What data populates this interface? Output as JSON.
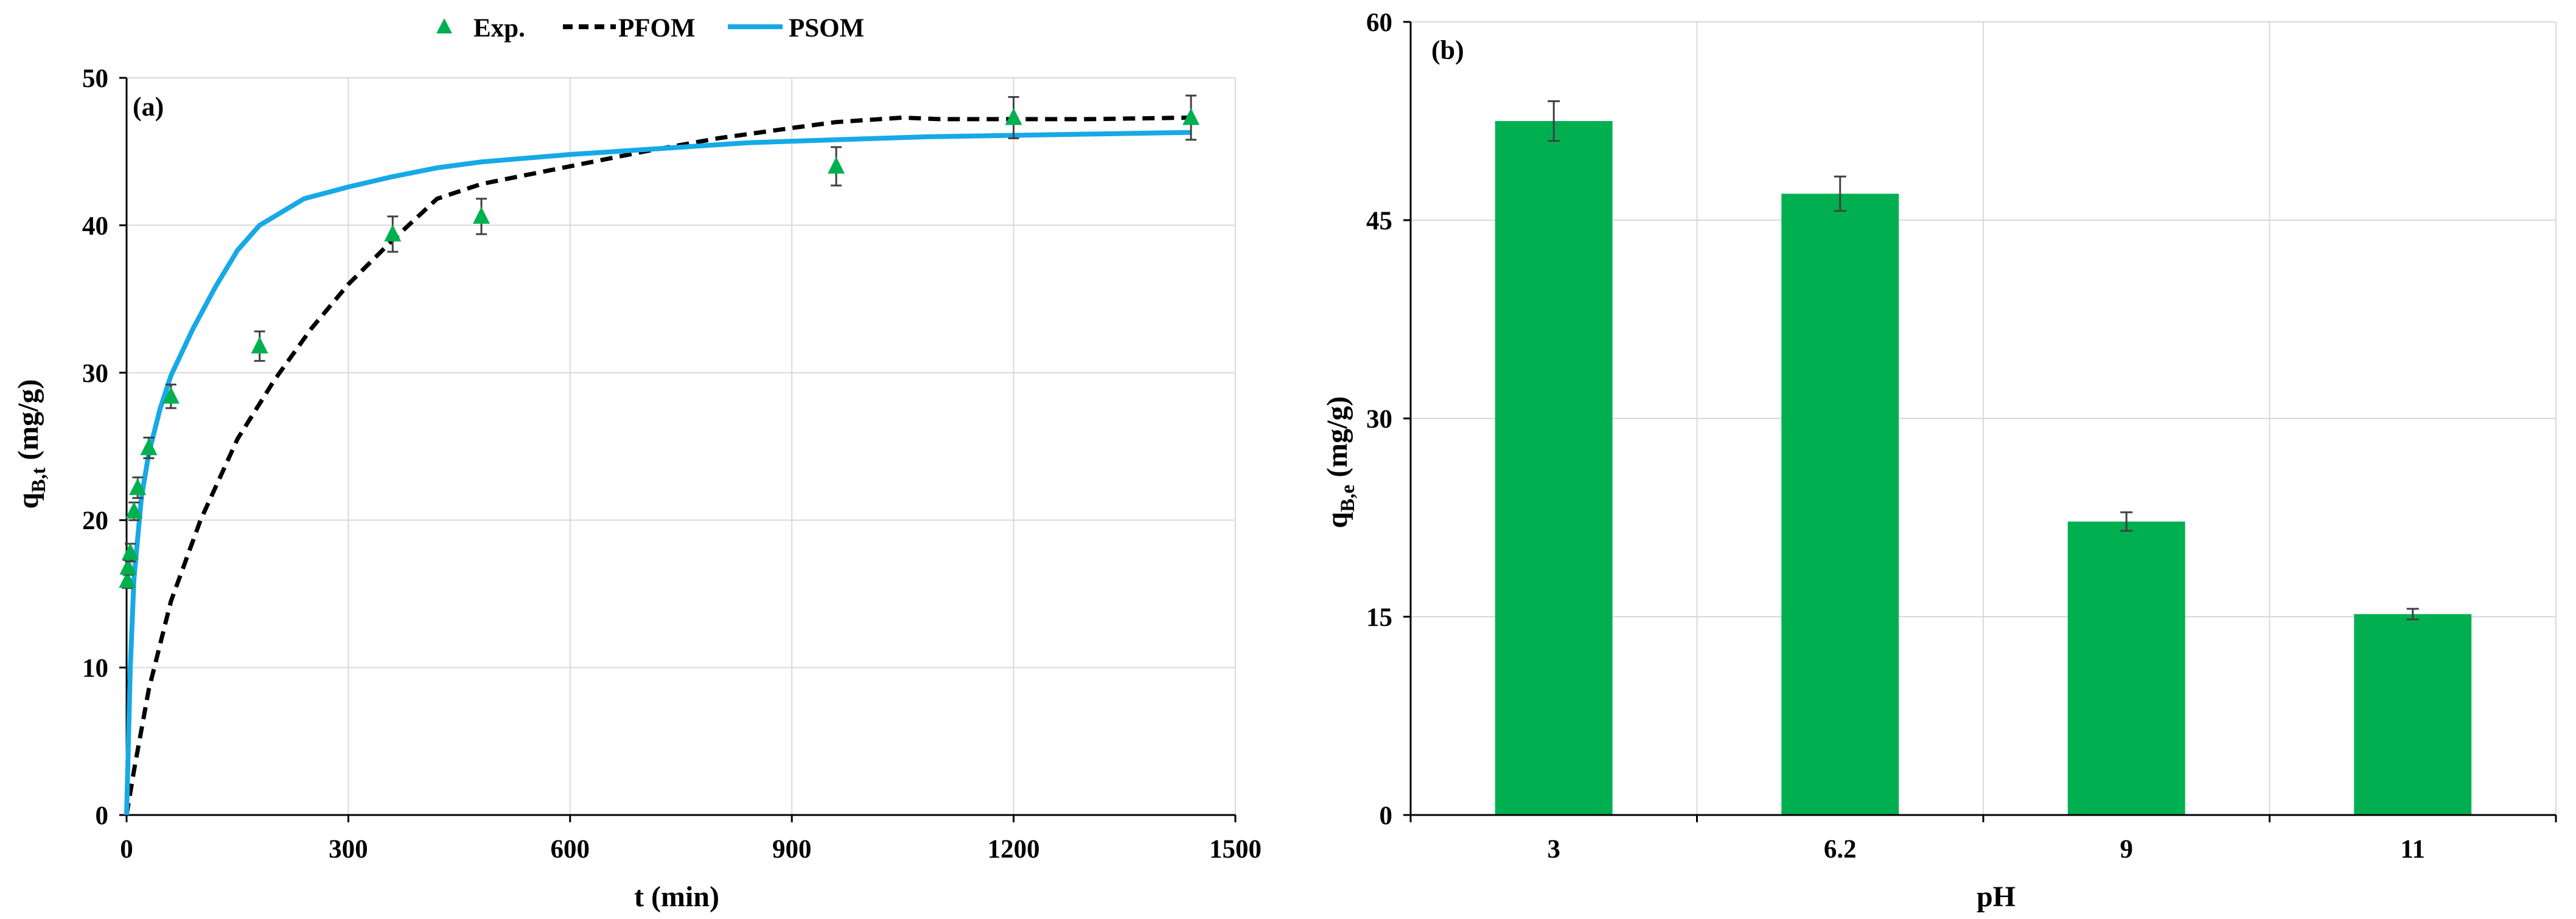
{
  "chart_data": [
    {
      "panel_label": "(a)",
      "type": "scatter",
      "xlabel": "t (min)",
      "ylabel": {
        "main": "q",
        "sub": "B,t",
        "unit": " (mg/g)"
      },
      "xlim": [
        0,
        1500
      ],
      "ylim": [
        0,
        50
      ],
      "xticks": [
        0,
        300,
        600,
        900,
        1200,
        1500
      ],
      "yticks": [
        0,
        10,
        20,
        30,
        40,
        50
      ],
      "grid": true,
      "legend": {
        "placement": "top-center, above plot",
        "entries": [
          "Exp.",
          "PFOM",
          "PSOM"
        ]
      },
      "series": [
        {
          "name": "Exp.",
          "kind": "markers",
          "marker": "triangle",
          "color": "#00b050",
          "points": [
            {
              "x": 1,
              "y": 15.9,
              "err": 0.5
            },
            {
              "x": 2,
              "y": 16.8,
              "err": 0.5
            },
            {
              "x": 5,
              "y": 17.8,
              "err": 0.6
            },
            {
              "x": 10,
              "y": 20.6,
              "err": 0.6
            },
            {
              "x": 15,
              "y": 22.2,
              "err": 0.7
            },
            {
              "x": 30,
              "y": 24.9,
              "err": 0.7
            },
            {
              "x": 60,
              "y": 28.4,
              "err": 0.8
            },
            {
              "x": 180,
              "y": 31.8,
              "err": 1.0
            },
            {
              "x": 360,
              "y": 39.4,
              "err": 1.2
            },
            {
              "x": 480,
              "y": 40.6,
              "err": 1.2
            },
            {
              "x": 960,
              "y": 44.0,
              "err": 1.3
            },
            {
              "x": 1200,
              "y": 47.3,
              "err": 1.4
            },
            {
              "x": 1440,
              "y": 47.3,
              "err": 1.5
            }
          ]
        },
        {
          "name": "PFOM",
          "kind": "line",
          "style": "dashed",
          "color": "#000000",
          "x": [
            0,
            10,
            30,
            60,
            100,
            150,
            200,
            250,
            300,
            360,
            420,
            480,
            600,
            700,
            800,
            900,
            960,
            1050,
            1100,
            1200,
            1300,
            1440
          ],
          "y": [
            0,
            3.0,
            8.5,
            14.5,
            20.0,
            25.5,
            29.5,
            33.0,
            36.0,
            39.0,
            41.8,
            42.8,
            44.0,
            45.0,
            45.9,
            46.6,
            47.0,
            47.3,
            47.2,
            47.2,
            47.2,
            47.3
          ]
        },
        {
          "name": "PSOM",
          "kind": "line",
          "style": "solid",
          "color": "#17a9e6",
          "x": [
            0,
            5,
            10,
            20,
            30,
            45,
            60,
            90,
            120,
            150,
            180,
            240,
            300,
            360,
            420,
            480,
            600,
            720,
            840,
            960,
            1080,
            1200,
            1320,
            1440
          ],
          "y": [
            0,
            10.0,
            16.0,
            21.5,
            24.5,
            27.5,
            29.8,
            33.0,
            35.8,
            38.3,
            40.0,
            41.8,
            42.6,
            43.3,
            43.9,
            44.3,
            44.8,
            45.2,
            45.6,
            45.8,
            46.0,
            46.1,
            46.2,
            46.3
          ]
        }
      ]
    },
    {
      "panel_label": "(b)",
      "type": "bar",
      "xlabel": "pH",
      "ylabel": {
        "main": "q",
        "sub": "B,e",
        "unit": " (mg/g)"
      },
      "categories": [
        "3",
        "6.2",
        "9",
        "11"
      ],
      "values": [
        52.5,
        47.0,
        22.2,
        15.2
      ],
      "errors": [
        1.5,
        1.3,
        0.7,
        0.4
      ],
      "ylim": [
        0,
        60
      ],
      "yticks": [
        0,
        15,
        30,
        45,
        60
      ],
      "grid": true,
      "bar_color": "#00b050"
    }
  ]
}
